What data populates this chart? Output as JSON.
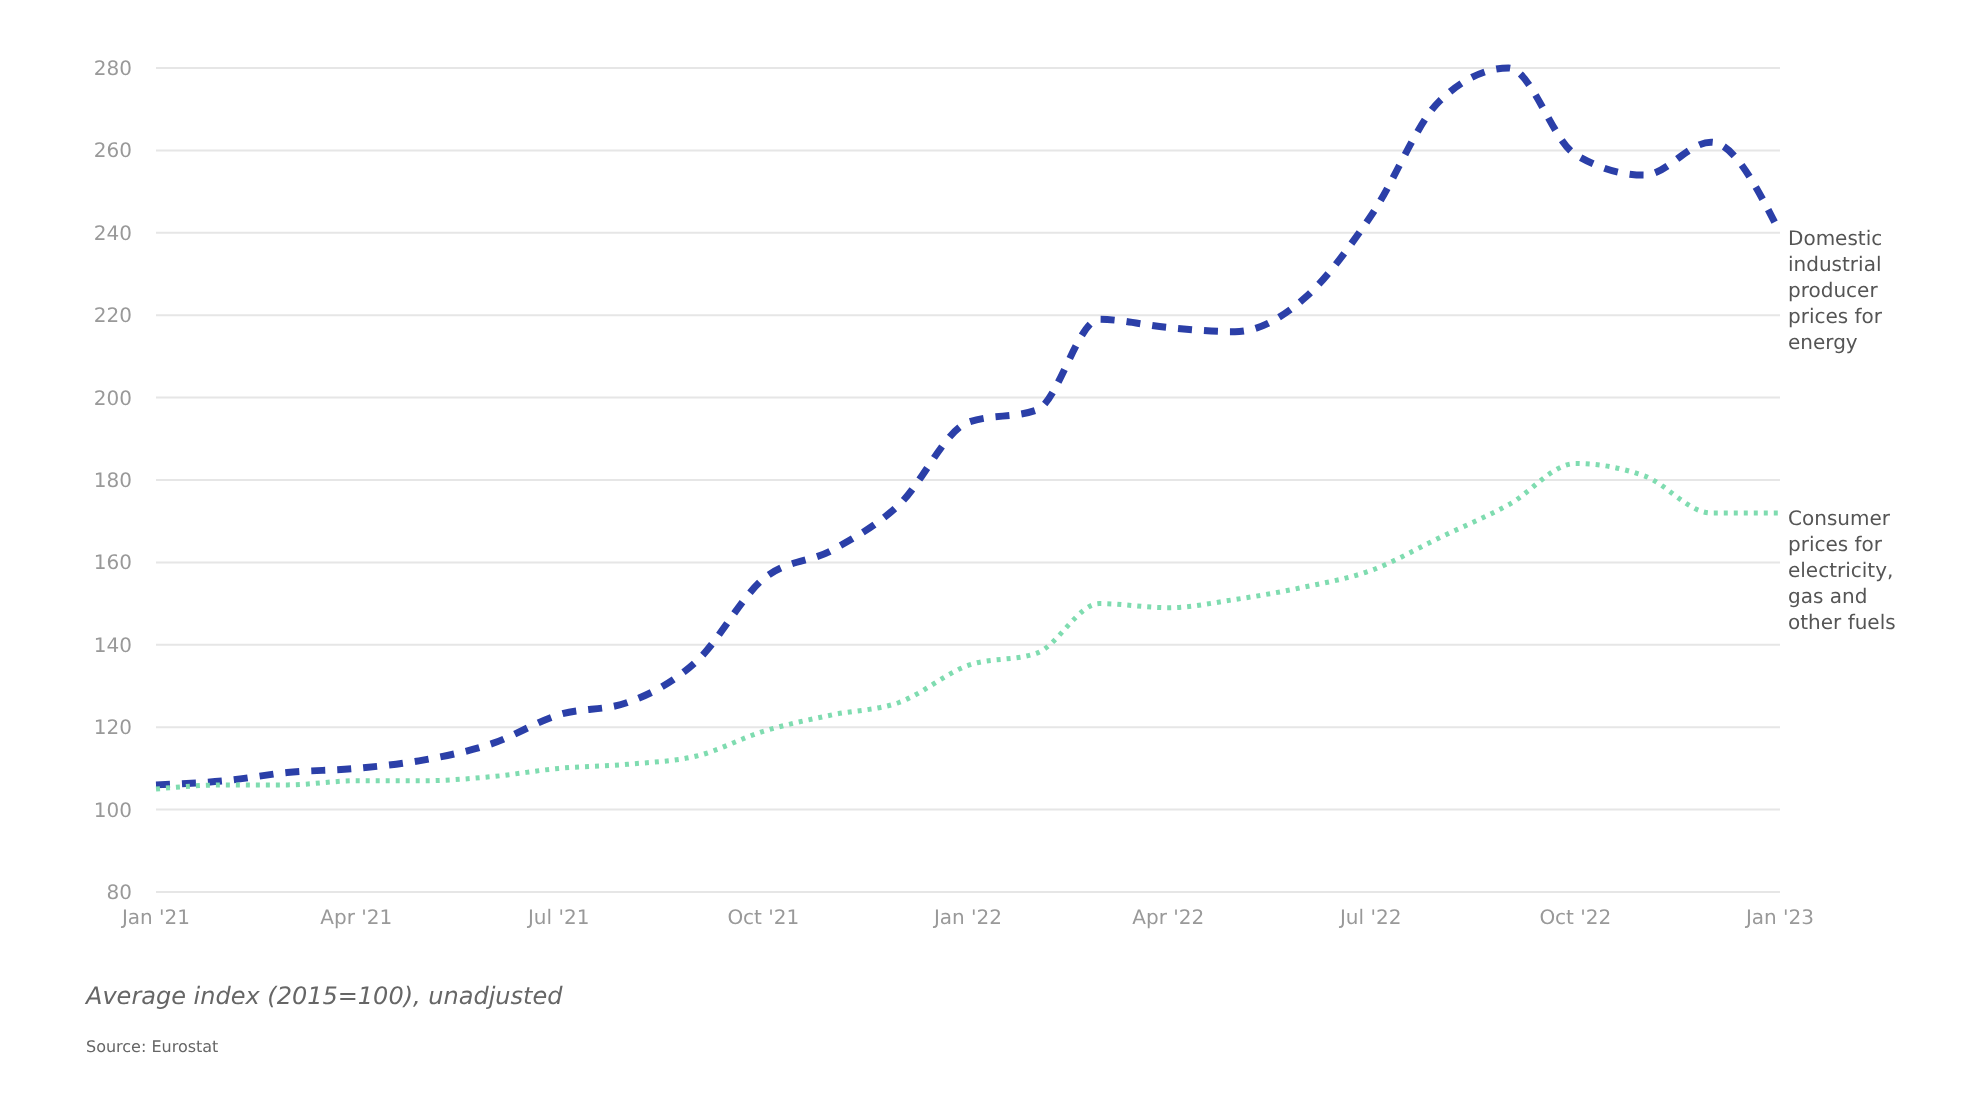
{
  "chart_data": {
    "type": "line",
    "x": [
      "2021-01",
      "2021-02",
      "2021-03",
      "2021-04",
      "2021-05",
      "2021-06",
      "2021-07",
      "2021-08",
      "2021-09",
      "2021-10",
      "2021-11",
      "2021-12",
      "2022-01",
      "2022-02",
      "2022-03",
      "2022-04",
      "2022-05",
      "2022-06",
      "2022-07",
      "2022-08",
      "2022-09",
      "2022-10",
      "2022-11",
      "2022-12",
      "2023-01"
    ],
    "series": [
      {
        "name": "Domestic industrial producer prices for energy",
        "color": "#2b3fa8",
        "line_style": "dashed",
        "values": [
          106,
          107,
          109,
          110,
          112,
          116,
          123,
          126,
          136,
          156,
          163,
          174,
          194,
          197,
          219,
          217,
          216,
          224,
          244,
          272,
          280,
          259,
          254,
          262,
          240
        ]
      },
      {
        "name": "Consumer prices for electricity, gas and other fuels",
        "color": "#7fdcb0",
        "line_style": "dotted",
        "values": [
          105,
          106,
          106,
          107,
          107,
          108,
          110,
          111,
          113,
          119,
          123,
          126,
          135,
          138,
          150,
          149,
          151,
          154,
          158,
          166,
          174,
          184,
          181,
          172,
          172
        ]
      }
    ],
    "xlim": [
      "2021-01",
      "2023-01"
    ],
    "xticks": [
      {
        "value": "2021-01",
        "label": "Jan '21"
      },
      {
        "value": "2021-04",
        "label": "Apr '21"
      },
      {
        "value": "2021-07",
        "label": "Jul '21"
      },
      {
        "value": "2021-10",
        "label": "Oct '21"
      },
      {
        "value": "2022-01",
        "label": "Jan '22"
      },
      {
        "value": "2022-04",
        "label": "Apr '22"
      },
      {
        "value": "2022-07",
        "label": "Jul '22"
      },
      {
        "value": "2022-10",
        "label": "Oct '22"
      },
      {
        "value": "2023-01",
        "label": "Jan '23"
      }
    ],
    "ylim": [
      80,
      280
    ],
    "yticks": [
      80,
      100,
      120,
      140,
      160,
      180,
      200,
      220,
      240,
      260,
      280
    ],
    "grid": "y",
    "annotations": [
      "Average index (2015=100), unadjusted",
      "Source: Eurostat"
    ]
  }
}
